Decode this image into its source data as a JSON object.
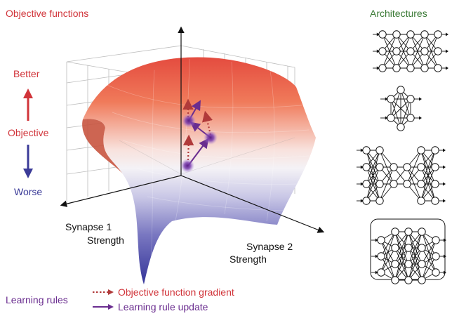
{
  "objective": {
    "title": "Objective functions",
    "better": "Better",
    "axis_label": "Objective",
    "worse": "Worse"
  },
  "axes": {
    "synapse1_line1": "Synapse 1",
    "synapse1_line2": "Strength",
    "synapse2_line1": "Synapse 2",
    "synapse2_line2": "Strength"
  },
  "architectures": {
    "title": "Architectures"
  },
  "learning": {
    "title": "Learning rules",
    "gradient_label": "Objective function gradient",
    "update_label": "Learning rule update"
  },
  "colors": {
    "red": "#d1343a",
    "blue": "#3b3b98",
    "green": "#3a7a35",
    "purple": "#6a2d8f",
    "dotted_red": "#b03a3a"
  }
}
